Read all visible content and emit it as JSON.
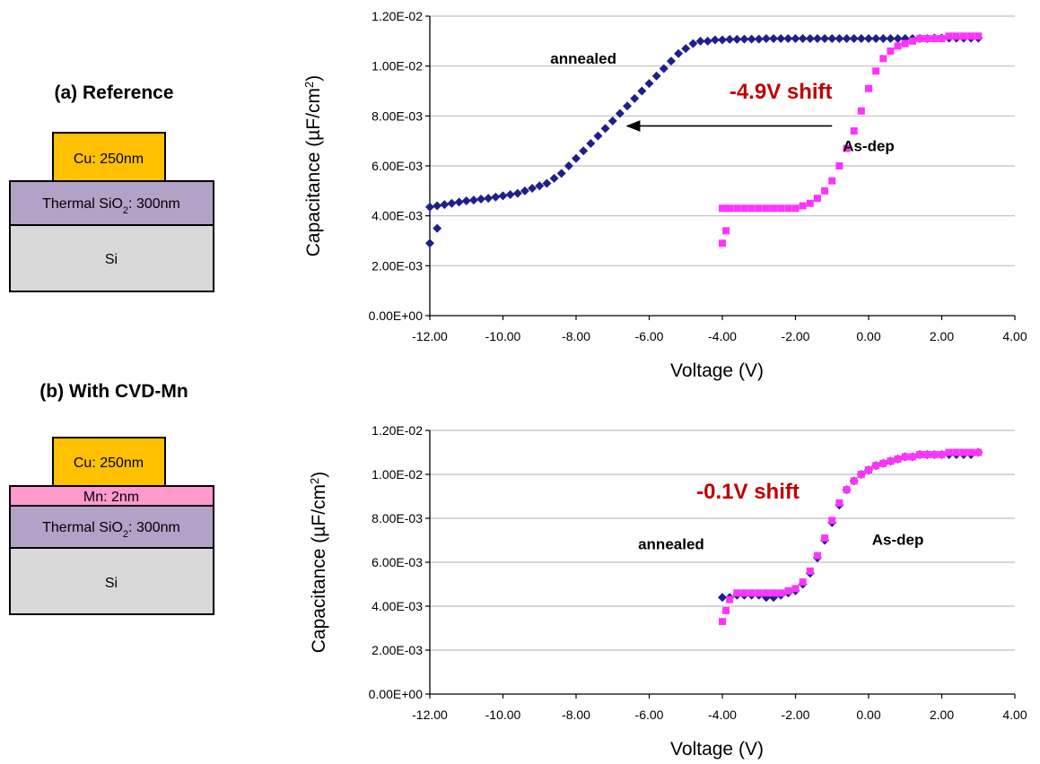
{
  "panels": [
    {
      "heading": "(a) Reference",
      "layers": [
        {
          "label_main": "Cu: 250nm",
          "label_sub": "",
          "label_tail": "",
          "color": "#FFC000"
        },
        {
          "label_main": "Thermal SiO",
          "label_sub": "2",
          "label_tail": ": 300nm",
          "color": "#B3A2C7"
        },
        {
          "label_main": "Si",
          "label_sub": "",
          "label_tail": "",
          "color": "#D9D9D9"
        }
      ]
    },
    {
      "heading": "(b) With CVD-Mn",
      "layers": [
        {
          "label_main": "Cu: 250nm",
          "label_sub": "",
          "label_tail": "",
          "color": "#FFC000"
        },
        {
          "label_main": "Mn: 2nm",
          "label_sub": "",
          "label_tail": "",
          "color": "#FF99CC"
        },
        {
          "label_main": "Thermal SiO",
          "label_sub": "2",
          "label_tail": ": 300nm",
          "color": "#B3A2C7"
        },
        {
          "label_main": "Si",
          "label_sub": "",
          "label_tail": "",
          "color": "#D9D9D9"
        }
      ]
    }
  ],
  "colors": {
    "annealed": "#1F1F8C",
    "asdep": "#FF33FF",
    "shift_text": "#C00000",
    "grid": "#BFBFBF"
  },
  "chart_data": [
    {
      "type": "scatter",
      "xlabel": "Voltage (V)",
      "ylabel": "Capacitance (µF/cm²)",
      "ylabel_parts": [
        "Capacitance (",
        "µ",
        "F/cm",
        "2",
        ")"
      ],
      "xlim": [
        -12,
        4
      ],
      "ylim": [
        0,
        0.012
      ],
      "xticks": [
        -12,
        -10,
        -8,
        -6,
        -4,
        -2,
        0,
        2,
        4
      ],
      "xtick_labels": [
        "-12.00",
        "-10.00",
        "-8.00",
        "-6.00",
        "-4.00",
        "-2.00",
        "0.00",
        "2.00",
        "4.00"
      ],
      "yticks": [
        0,
        0.002,
        0.004,
        0.006,
        0.008,
        0.01,
        0.012
      ],
      "ytick_labels": [
        "0.00E+00",
        "2.00E-03",
        "4.00E-03",
        "6.00E-03",
        "8.00E-03",
        "1.00E-02",
        "1.20E-02"
      ],
      "grid": "horizontal",
      "annotations": [
        {
          "text": "annealed",
          "x": -7.8,
          "y": 0.0101,
          "style": "label"
        },
        {
          "text": "-4.9V shift",
          "x": -2.4,
          "y": 0.0087,
          "style": "shift"
        },
        {
          "text": "As-dep",
          "x": 0.0,
          "y": 0.0066,
          "style": "label"
        }
      ],
      "arrow": {
        "from": [
          -1.0,
          0.0076
        ],
        "to": [
          -6.6,
          0.0076
        ]
      },
      "series": [
        {
          "key": "annealed",
          "marker": "diamond",
          "x": [
            -12.0,
            -11.8,
            -11.6,
            -11.4,
            -11.2,
            -11.0,
            -10.8,
            -10.6,
            -10.4,
            -10.2,
            -10.0,
            -9.8,
            -9.6,
            -9.4,
            -9.2,
            -9.0,
            -8.8,
            -8.6,
            -8.4,
            -8.2,
            -8.0,
            -7.8,
            -7.6,
            -7.4,
            -7.2,
            -7.0,
            -6.8,
            -6.6,
            -6.4,
            -6.2,
            -6.0,
            -5.8,
            -5.6,
            -5.4,
            -5.2,
            -5.0,
            -4.8,
            -4.6,
            -4.4,
            -4.2,
            -4.0,
            -3.8,
            -3.6,
            -3.4,
            -3.2,
            -3.0,
            -2.8,
            -2.6,
            -2.4,
            -2.2,
            -2.0,
            -1.8,
            -1.6,
            -1.4,
            -1.2,
            -1.0,
            -0.8,
            -0.6,
            -0.4,
            -0.2,
            0.0,
            0.2,
            0.4,
            0.6,
            0.8,
            1.0,
            1.2,
            1.4,
            1.6,
            1.8,
            2.0,
            2.2,
            2.4,
            2.6,
            2.8,
            3.0,
            -12.0,
            -11.8
          ],
          "y": [
            0.00435,
            0.0044,
            0.00445,
            0.0045,
            0.00455,
            0.0046,
            0.00463,
            0.00467,
            0.0047,
            0.00475,
            0.0048,
            0.00485,
            0.0049,
            0.005,
            0.0051,
            0.0052,
            0.0053,
            0.0055,
            0.0057,
            0.006,
            0.0063,
            0.0066,
            0.0069,
            0.0072,
            0.0075,
            0.0078,
            0.0081,
            0.0084,
            0.0087,
            0.009,
            0.0093,
            0.0096,
            0.0099,
            0.0102,
            0.0105,
            0.0107,
            0.0109,
            0.011,
            0.011,
            0.01105,
            0.01105,
            0.01107,
            0.01107,
            0.01108,
            0.01108,
            0.01108,
            0.0111,
            0.0111,
            0.0111,
            0.0111,
            0.0111,
            0.0111,
            0.0111,
            0.0111,
            0.0111,
            0.0111,
            0.0111,
            0.0111,
            0.0111,
            0.0111,
            0.0111,
            0.0111,
            0.0111,
            0.0111,
            0.0111,
            0.0111,
            0.0111,
            0.0111,
            0.0111,
            0.01112,
            0.01112,
            0.01112,
            0.01112,
            0.01112,
            0.01112,
            0.01112,
            0.0029,
            0.0035
          ]
        },
        {
          "key": "asdep",
          "marker": "square",
          "x": [
            -4.0,
            -3.9,
            -3.8,
            -3.6,
            -3.4,
            -3.2,
            -3.0,
            -2.8,
            -2.6,
            -2.4,
            -2.2,
            -2.0,
            -1.8,
            -1.6,
            -1.4,
            -1.2,
            -1.0,
            -0.8,
            -0.6,
            -0.4,
            -0.2,
            0.0,
            0.2,
            0.4,
            0.6,
            0.8,
            1.0,
            1.2,
            1.4,
            1.6,
            1.8,
            2.0,
            2.2,
            2.4,
            2.6,
            2.8,
            3.0,
            -4.0,
            -3.9
          ],
          "y": [
            0.0043,
            0.0043,
            0.0043,
            0.0043,
            0.0043,
            0.0043,
            0.0043,
            0.0043,
            0.0043,
            0.0043,
            0.0043,
            0.0043,
            0.0044,
            0.0045,
            0.0047,
            0.005,
            0.0054,
            0.006,
            0.0067,
            0.0074,
            0.0082,
            0.0091,
            0.0098,
            0.0103,
            0.0106,
            0.0108,
            0.0109,
            0.011,
            0.0111,
            0.0111,
            0.0111,
            0.0111,
            0.0112,
            0.0112,
            0.0112,
            0.0112,
            0.0112,
            0.0029,
            0.0034
          ]
        }
      ]
    },
    {
      "type": "scatter",
      "xlabel": "Voltage (V)",
      "ylabel": "Capacitance (µF/cm²)",
      "ylabel_parts": [
        "Capacitance (",
        "µ",
        "F/cm",
        "2",
        ")"
      ],
      "xlim": [
        -12,
        4
      ],
      "ylim": [
        0,
        0.012
      ],
      "xticks": [
        -12,
        -10,
        -8,
        -6,
        -4,
        -2,
        0,
        2,
        4
      ],
      "xtick_labels": [
        "-12.00",
        "-10.00",
        "-8.00",
        "-6.00",
        "-4.00",
        "-2.00",
        "0.00",
        "2.00",
        "4.00"
      ],
      "yticks": [
        0,
        0.002,
        0.004,
        0.006,
        0.008,
        0.01,
        0.012
      ],
      "ytick_labels": [
        "0.00E+00",
        "2.00E-03",
        "4.00E-03",
        "6.00E-03",
        "8.00E-03",
        "1.00E-02",
        "1.20E-02"
      ],
      "grid": "horizontal",
      "annotations": [
        {
          "text": "-0.1V shift",
          "x": -3.3,
          "y": 0.0089,
          "style": "shift"
        },
        {
          "text": "annealed",
          "x": -5.4,
          "y": 0.0066,
          "style": "label"
        },
        {
          "text": "As-dep",
          "x": 0.8,
          "y": 0.0068,
          "style": "label"
        }
      ],
      "series": [
        {
          "key": "annealed",
          "marker": "diamond",
          "x": [
            -4.0,
            -3.8,
            -3.6,
            -3.4,
            -3.2,
            -3.0,
            -2.8,
            -2.6,
            -2.4,
            -2.2,
            -2.0,
            -1.8,
            -1.6,
            -1.4,
            -1.2,
            -1.0,
            -0.8,
            -0.6,
            -0.4,
            -0.2,
            0.0,
            0.2,
            0.4,
            0.6,
            0.8,
            1.0,
            1.2,
            1.4,
            1.6,
            1.8,
            2.0,
            2.2,
            2.4,
            2.6,
            2.8,
            3.0
          ],
          "y": [
            0.0044,
            0.0044,
            0.0045,
            0.0045,
            0.0045,
            0.0045,
            0.0044,
            0.0044,
            0.0045,
            0.0046,
            0.0047,
            0.005,
            0.0055,
            0.0062,
            0.007,
            0.0078,
            0.0086,
            0.0093,
            0.0097,
            0.01,
            0.0102,
            0.0104,
            0.0105,
            0.0106,
            0.0107,
            0.0108,
            0.0108,
            0.0109,
            0.0109,
            0.0109,
            0.0109,
            0.0109,
            0.0109,
            0.0109,
            0.0109,
            0.011
          ]
        },
        {
          "key": "asdep",
          "marker": "square",
          "x": [
            -4.0,
            -3.9,
            -3.8,
            -3.6,
            -3.4,
            -3.2,
            -3.0,
            -2.8,
            -2.6,
            -2.4,
            -2.2,
            -2.0,
            -1.8,
            -1.6,
            -1.4,
            -1.2,
            -1.0,
            -0.8,
            -0.6,
            -0.4,
            -0.2,
            0.0,
            0.2,
            0.4,
            0.6,
            0.8,
            1.0,
            1.2,
            1.4,
            1.6,
            1.8,
            2.0,
            2.2,
            2.4,
            2.6,
            2.8,
            3.0
          ],
          "y": [
            0.0033,
            0.0038,
            0.0043,
            0.0046,
            0.0046,
            0.0046,
            0.0046,
            0.0046,
            0.0046,
            0.0046,
            0.0047,
            0.0048,
            0.0051,
            0.0056,
            0.0063,
            0.0071,
            0.0079,
            0.0087,
            0.0093,
            0.0097,
            0.01,
            0.0102,
            0.0104,
            0.0105,
            0.0106,
            0.0107,
            0.0108,
            0.0108,
            0.0109,
            0.0109,
            0.0109,
            0.0109,
            0.011,
            0.011,
            0.011,
            0.011,
            0.011
          ]
        }
      ]
    }
  ]
}
